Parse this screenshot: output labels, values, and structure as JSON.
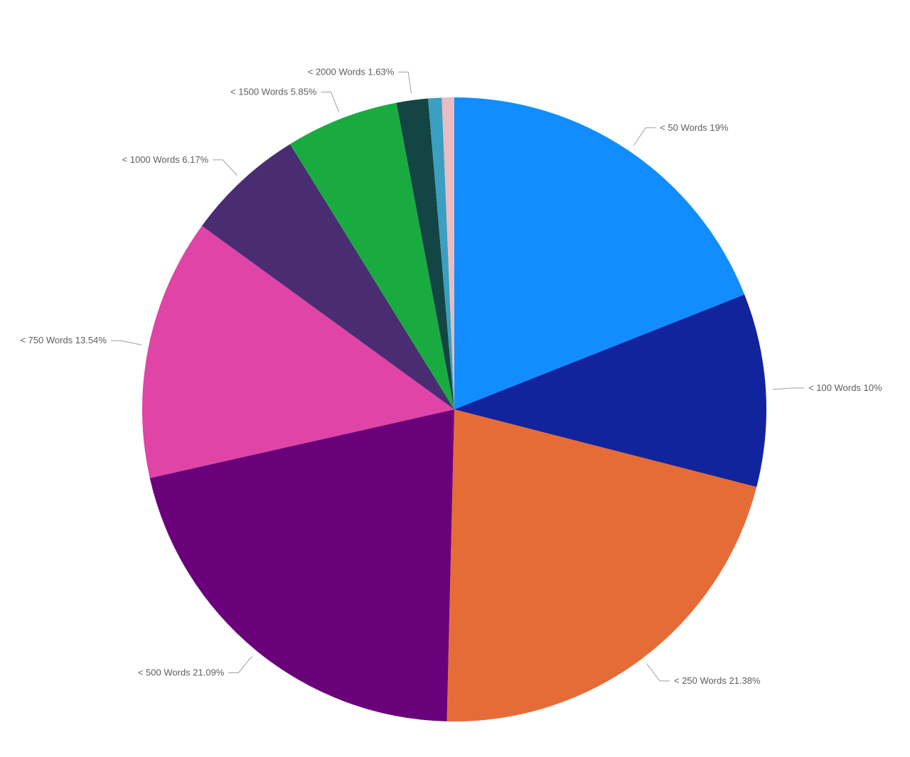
{
  "chart_data": {
    "type": "pie",
    "title": "",
    "legend": "none",
    "slices": [
      {
        "label": "< 50 Words",
        "value": 19.0,
        "display_pct": "19%",
        "color": "#118DFF"
      },
      {
        "label": "< 100 Words",
        "value": 10.0,
        "display_pct": "10%",
        "color": "#12239E"
      },
      {
        "label": "< 250 Words",
        "value": 21.38,
        "display_pct": "21.38%",
        "color": "#E66C37"
      },
      {
        "label": "< 500 Words",
        "value": 21.09,
        "display_pct": "21.09%",
        "color": "#6B007B"
      },
      {
        "label": "< 750 Words",
        "value": 13.54,
        "display_pct": "13.54%",
        "color": "#E044A7"
      },
      {
        "label": "< 1000 Words",
        "value": 6.17,
        "display_pct": "6.17%",
        "color": "#4A2C73"
      },
      {
        "label": "< 1500 Words",
        "value": 5.85,
        "display_pct": "5.85%",
        "color": "#1AAB40"
      },
      {
        "label": "< 2000 Words",
        "value": 1.63,
        "display_pct": "1.63%",
        "color": "#134544"
      },
      {
        "label": "",
        "value": 0.7,
        "display_pct": "",
        "color": "#3A9FC0"
      },
      {
        "label": "",
        "value": 0.64,
        "display_pct": "",
        "color": "#E8BCC0"
      }
    ]
  }
}
